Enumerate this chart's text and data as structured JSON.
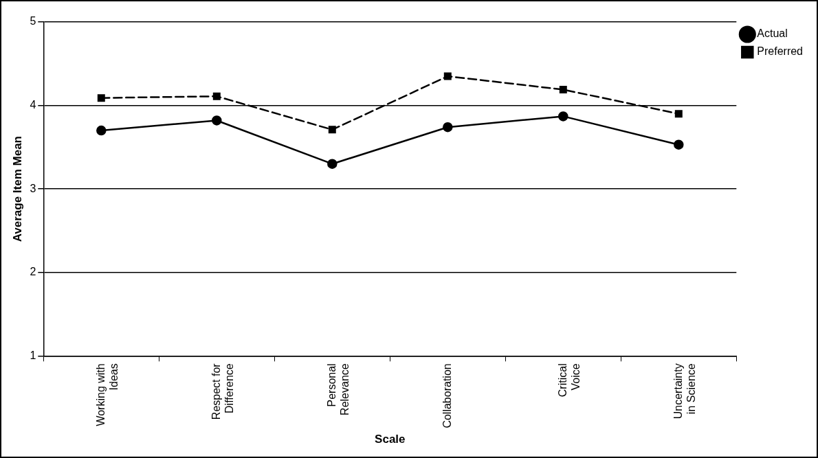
{
  "chart_data": {
    "type": "line",
    "xlabel": "Scale",
    "ylabel": "Average Item Mean",
    "categories": [
      "Working with Ideas",
      "Respect for Difference",
      "Personal Relevance",
      "Collaboration",
      "Critical Voice",
      "Uncertainty in Science"
    ],
    "series": [
      {
        "name": "Actual",
        "color": "#000000",
        "marker": "circle",
        "line_style": "solid",
        "values": [
          3.7,
          3.82,
          3.3,
          3.74,
          3.87,
          3.53
        ]
      },
      {
        "name": "Preferred",
        "color": "#000000",
        "marker": "square",
        "line_style": "dashed",
        "values": [
          4.09,
          4.11,
          3.71,
          4.35,
          4.19,
          3.9
        ]
      }
    ],
    "ylim": [
      1,
      5
    ],
    "yticks": [
      1,
      2,
      3,
      4,
      5
    ],
    "grid": "y",
    "legend": "top right"
  }
}
